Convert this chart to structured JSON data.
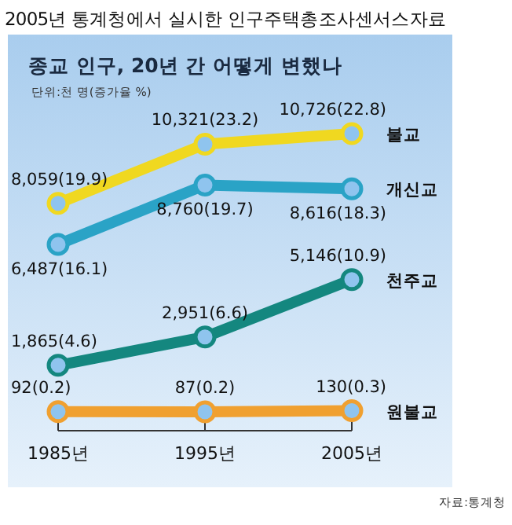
{
  "chart_data": {
    "type": "line",
    "title": "2005년 통계청에서 실시한 인구주택총조사센서스자료",
    "subtitle": "종교 인구, 20년 간 어떻게 변했나",
    "annotations": [
      "단위:천 명(증가율 %)",
      "자료:통계청"
    ],
    "categories": [
      "1985년",
      "1995년",
      "2005년"
    ],
    "marker": "circle",
    "series": [
      {
        "name": "불교",
        "color": "#f0d820",
        "values": [
          8059,
          10321,
          10726
        ],
        "value_labels": [
          "8,059(19.9)",
          "10,321(23.2)",
          "10,726(22.8)"
        ]
      },
      {
        "name": "개신교",
        "color": "#2aa3c6",
        "values": [
          6487,
          8760,
          8616
        ],
        "value_labels": [
          "6,487(16.1)",
          "8,760(19.7)",
          "8,616(18.3)"
        ]
      },
      {
        "name": "천주교",
        "color": "#14877f",
        "values": [
          1865,
          2951,
          5146
        ],
        "value_labels": [
          "1,865(4.6)",
          "2,951(6.6)",
          "5,146(10.9)"
        ]
      },
      {
        "name": "원불교",
        "color": "#f0a030",
        "values": [
          92,
          87,
          130
        ],
        "value_labels": [
          "92(0.2)",
          "87(0.2)",
          "130(0.3)"
        ]
      }
    ]
  }
}
